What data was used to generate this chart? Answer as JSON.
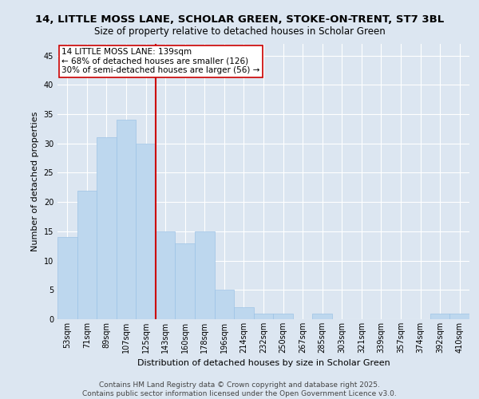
{
  "title_line1": "14, LITTLE MOSS LANE, SCHOLAR GREEN, STOKE-ON-TRENT, ST7 3BL",
  "title_line2": "Size of property relative to detached houses in Scholar Green",
  "xlabel": "Distribution of detached houses by size in Scholar Green",
  "ylabel": "Number of detached properties",
  "categories": [
    "53sqm",
    "71sqm",
    "89sqm",
    "107sqm",
    "125sqm",
    "143sqm",
    "160sqm",
    "178sqm",
    "196sqm",
    "214sqm",
    "232sqm",
    "250sqm",
    "267sqm",
    "285sqm",
    "303sqm",
    "321sqm",
    "339sqm",
    "357sqm",
    "374sqm",
    "392sqm",
    "410sqm"
  ],
  "values": [
    14,
    22,
    31,
    34,
    30,
    15,
    13,
    15,
    5,
    2,
    1,
    1,
    0,
    1,
    0,
    0,
    0,
    0,
    0,
    1,
    1
  ],
  "bar_color": "#bdd7ee",
  "bar_edge_color": "#9dc3e6",
  "background_color": "#dce6f1",
  "grid_color": "#ffffff",
  "vline_x": 4.5,
  "vline_color": "#cc0000",
  "annotation_box_text": "14 LITTLE MOSS LANE: 139sqm\n← 68% of detached houses are smaller (126)\n30% of semi-detached houses are larger (56) →",
  "annotation_box_color": "#ffffff",
  "annotation_box_edge_color": "#cc0000",
  "ylim": [
    0,
    47
  ],
  "yticks": [
    0,
    5,
    10,
    15,
    20,
    25,
    30,
    35,
    40,
    45
  ],
  "footer_line1": "Contains HM Land Registry data © Crown copyright and database right 2025.",
  "footer_line2": "Contains public sector information licensed under the Open Government Licence v3.0.",
  "title_fontsize": 9.5,
  "subtitle_fontsize": 8.5,
  "tick_fontsize": 7,
  "ylabel_fontsize": 8,
  "xlabel_fontsize": 8,
  "annotation_fontsize": 7.5,
  "footer_fontsize": 6.5
}
